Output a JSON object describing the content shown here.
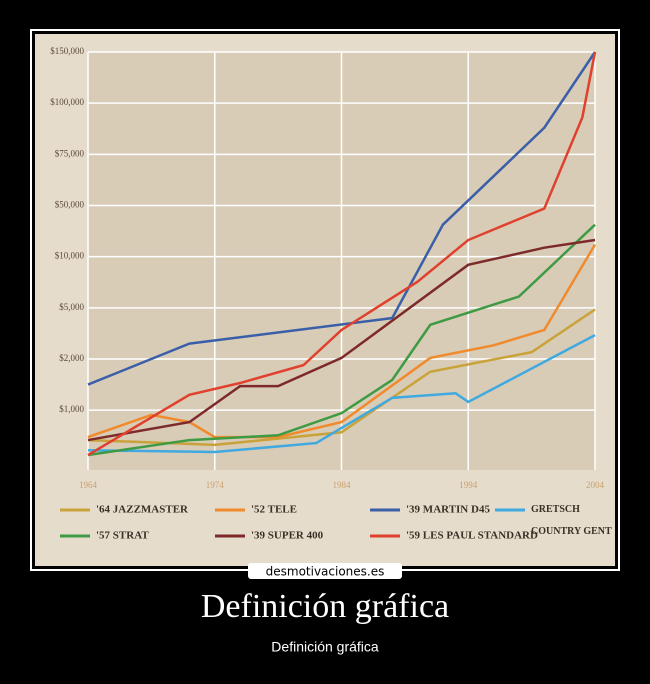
{
  "chart_data": {
    "type": "line",
    "xlim": [
      1964,
      2004
    ],
    "xticks": [
      1964,
      1974,
      1984,
      1994,
      2004
    ],
    "ylim": [
      0,
      150000
    ],
    "yticks": [
      {
        "value": 1000,
        "label": "$1,000"
      },
      {
        "value": 2000,
        "label": "$2,000"
      },
      {
        "value": 5000,
        "label": "$5,000"
      },
      {
        "value": 10000,
        "label": "$10,000"
      },
      {
        "value": 50000,
        "label": "$50,000"
      },
      {
        "value": 75000,
        "label": "$75,000"
      },
      {
        "value": 100000,
        "label": "$100,000"
      },
      {
        "value": 150000,
        "label": "$150,000"
      }
    ],
    "grid": true,
    "series": [
      {
        "name": "'64 JAZZMASTER",
        "color": "#c9a23a",
        "x": [
          1964,
          1974,
          1984,
          1991,
          1999,
          2004
        ],
        "values": [
          500,
          420,
          630,
          1750,
          2400,
          4900
        ]
      },
      {
        "name": "'52 TELE",
        "color": "#f08a2c",
        "x": [
          1964,
          1969,
          1972,
          1974,
          1979,
          1984,
          1991,
          1996,
          2000,
          2004
        ],
        "values": [
          550,
          920,
          800,
          550,
          550,
          800,
          2060,
          2800,
          3700,
          19400
        ]
      },
      {
        "name": "'39 MARTIN D45",
        "color": "#3a5fa8",
        "x": [
          1964,
          1972,
          1988,
          1992,
          2000,
          2004
        ],
        "values": [
          1500,
          2900,
          4400,
          35000,
          88000,
          150000
        ]
      },
      {
        "name": "GRETSCH COUNTRY GENT",
        "color": "#3fa9e0",
        "x": [
          1964,
          1974,
          1982,
          1988,
          1993,
          1994,
          2004
        ],
        "values": [
          330,
          300,
          450,
          1240,
          1330,
          1160,
          3400
        ]
      },
      {
        "name": "'57 STRAT",
        "color": "#3f9a44",
        "x": [
          1964,
          1972,
          1979,
          1984,
          1988,
          1991,
          1998,
          2004
        ],
        "values": [
          250,
          500,
          580,
          950,
          1590,
          4000,
          6100,
          35000
        ]
      },
      {
        "name": "'39 SUPER 400",
        "color": "#7e2a2a",
        "x": [
          1964,
          1972,
          1976,
          1979,
          1984,
          1994,
          2000,
          2004
        ],
        "values": [
          500,
          800,
          1470,
          1470,
          2060,
          9200,
          17000,
          23000
        ]
      },
      {
        "name": "'59 LES PAUL STANDARD",
        "color": "#e0412e",
        "x": [
          1964,
          1972,
          1976,
          1981,
          1984,
          1990,
          1994,
          2000,
          2003,
          2004
        ],
        "values": [
          250,
          1300,
          1530,
          1880,
          3700,
          7550,
          23000,
          47600,
          93000,
          150000
        ]
      }
    ]
  },
  "watermark": "desmotivaciones.es",
  "title": "Definición gráfica",
  "subtitle": "Definición gráfica"
}
